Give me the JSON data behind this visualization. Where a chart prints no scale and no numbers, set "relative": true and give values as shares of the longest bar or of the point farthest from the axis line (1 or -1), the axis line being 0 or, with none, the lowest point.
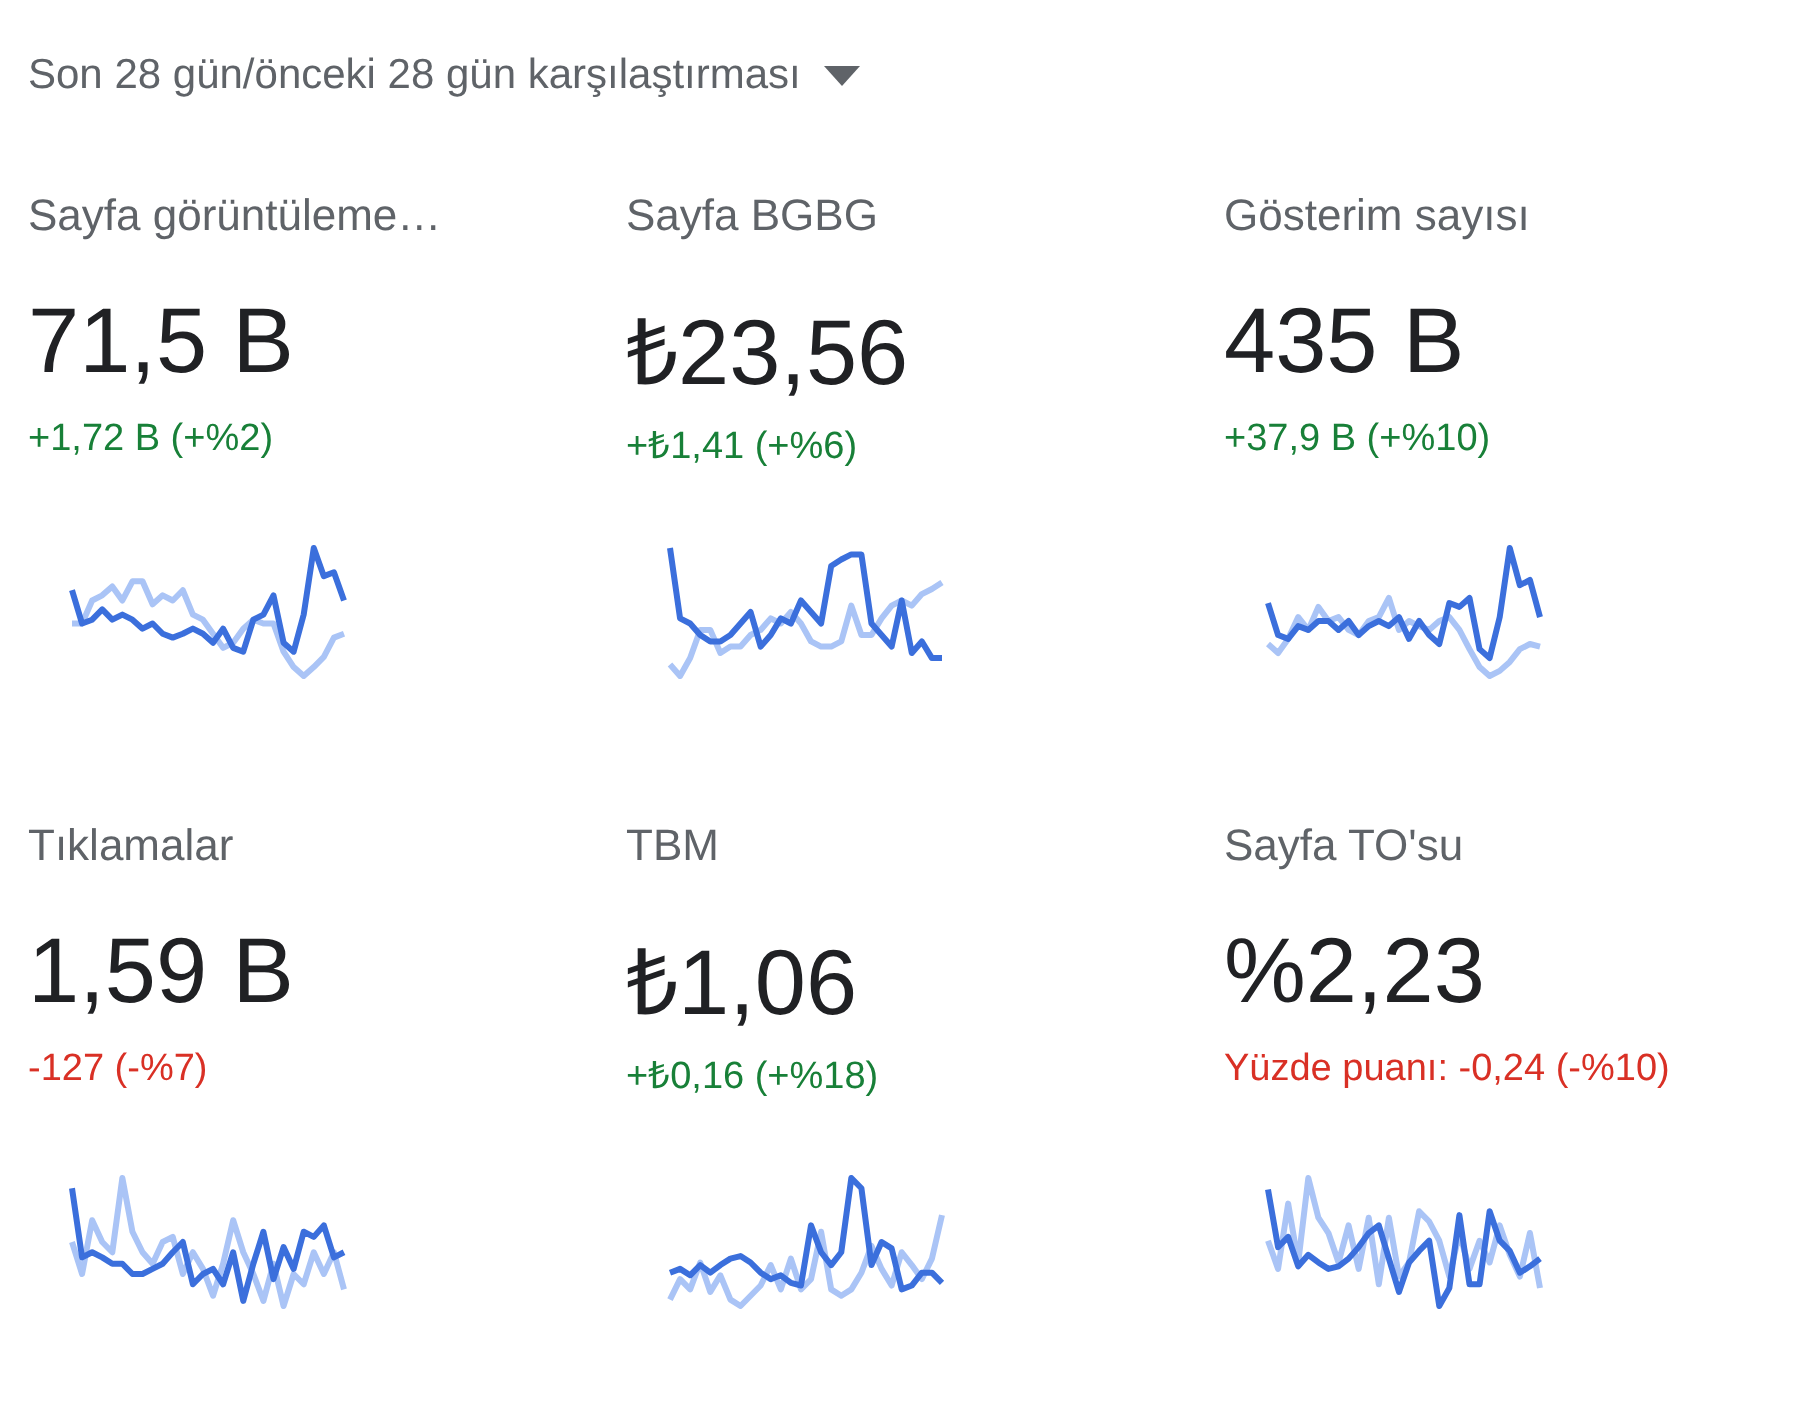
{
  "chart_data": [
    {
      "type": "other",
      "title": "Son 28 gün/önceki 28 gün karşılaştırması"
    },
    {
      "type": "line",
      "relative": true,
      "title": "Sayfa görüntüleme…",
      "subtitle": "71,5 B",
      "annotations": [
        "+1,72 B (+%2)"
      ],
      "categories": [
        null,
        null,
        null,
        null,
        null,
        null,
        null,
        null,
        null,
        null,
        null,
        null,
        null,
        null,
        null,
        null,
        null,
        null,
        null,
        null,
        null,
        null,
        null,
        null,
        null,
        null,
        null,
        null
      ],
      "series": [
        {
          "color": "#3b6fdc",
          "values": [
            0.67,
            0.41,
            0.44,
            0.52,
            0.44,
            0.48,
            0.44,
            0.37,
            0.41,
            0.33,
            0.3,
            0.33,
            0.37,
            0.33,
            0.26,
            0.37,
            0.22,
            0.19,
            0.44,
            0.48,
            0.63,
            0.26,
            0.19,
            0.48,
            1,
            0.78,
            0.81,
            0.59
          ]
        },
        {
          "color": "#aac4f6",
          "values": [
            0.41,
            0.41,
            0.59,
            0.63,
            0.7,
            0.59,
            0.74,
            0.74,
            0.56,
            0.63,
            0.59,
            0.67,
            0.48,
            0.44,
            0.33,
            0.22,
            0.26,
            0.37,
            0.44,
            0.41,
            0.41,
            0.19,
            0.07,
            0,
            0.07,
            0.15,
            0.3,
            0.33
          ]
        }
      ]
    },
    {
      "type": "line",
      "relative": true,
      "title": "Sayfa BGBG",
      "subtitle": "₺23,56",
      "annotations": [
        "+₺1,41 (+%6)"
      ],
      "categories": [
        null,
        null,
        null,
        null,
        null,
        null,
        null,
        null,
        null,
        null,
        null,
        null,
        null,
        null,
        null,
        null,
        null,
        null,
        null,
        null,
        null,
        null,
        null,
        null,
        null,
        null,
        null,
        null
      ],
      "series": [
        {
          "color": "#3b6fdc",
          "values": [
            1,
            0.45,
            0.41,
            0.32,
            0.27,
            0.27,
            0.32,
            0.41,
            0.5,
            0.23,
            0.32,
            0.45,
            0.41,
            0.59,
            0.5,
            0.41,
            0.86,
            0.91,
            0.95,
            0.95,
            0.41,
            0.32,
            0.23,
            0.59,
            0.18,
            0.27,
            0.14,
            0.14
          ]
        },
        {
          "color": "#aac4f6",
          "values": [
            0.09,
            0,
            0.14,
            0.36,
            0.36,
            0.18,
            0.23,
            0.23,
            0.32,
            0.36,
            0.45,
            0.41,
            0.5,
            0.41,
            0.27,
            0.23,
            0.23,
            0.27,
            0.55,
            0.32,
            0.32,
            0.45,
            0.55,
            0.59,
            0.55,
            0.64,
            0.68,
            0.73
          ]
        }
      ]
    },
    {
      "type": "line",
      "relative": true,
      "title": "Gösterim sayısı",
      "subtitle": "435 B",
      "annotations": [
        "+37,9 B (+%10)"
      ],
      "categories": [
        null,
        null,
        null,
        null,
        null,
        null,
        null,
        null,
        null,
        null,
        null,
        null,
        null,
        null,
        null,
        null,
        null,
        null,
        null,
        null,
        null,
        null,
        null,
        null,
        null,
        null,
        null,
        null
      ],
      "series": [
        {
          "color": "#3b6fdc",
          "values": [
            0.57,
            0.32,
            0.29,
            0.39,
            0.36,
            0.43,
            0.43,
            0.36,
            0.43,
            0.32,
            0.39,
            0.43,
            0.39,
            0.46,
            0.29,
            0.43,
            0.32,
            0.25,
            0.57,
            0.54,
            0.61,
            0.21,
            0.14,
            0.46,
            1,
            0.71,
            0.75,
            0.46
          ]
        },
        {
          "color": "#aac4f6",
          "values": [
            0.25,
            0.18,
            0.29,
            0.46,
            0.36,
            0.54,
            0.43,
            0.46,
            0.36,
            0.32,
            0.43,
            0.46,
            0.61,
            0.36,
            0.43,
            0.39,
            0.36,
            0.43,
            0.46,
            0.36,
            0.21,
            0.07,
            0,
            0.04,
            0.11,
            0.21,
            0.25,
            0.23
          ]
        }
      ]
    },
    {
      "type": "line",
      "relative": true,
      "title": "Tıklamalar",
      "subtitle": "1,59 B",
      "annotations": [
        "-127 (-%7)"
      ],
      "categories": [
        null,
        null,
        null,
        null,
        null,
        null,
        null,
        null,
        null,
        null,
        null,
        null,
        null,
        null,
        null,
        null,
        null,
        null,
        null,
        null,
        null,
        null,
        null,
        null,
        null,
        null,
        null,
        null
      ],
      "series": [
        {
          "color": "#3b6fdc",
          "values": [
            0.92,
            0.38,
            0.42,
            0.38,
            0.33,
            0.33,
            0.25,
            0.25,
            0.29,
            0.33,
            0.42,
            0.5,
            0.17,
            0.25,
            0.29,
            0.17,
            0.42,
            0.04,
            0.33,
            0.58,
            0.21,
            0.46,
            0.29,
            0.58,
            0.54,
            0.63,
            0.38,
            0.42
          ]
        },
        {
          "color": "#aac4f6",
          "values": [
            0.5,
            0.25,
            0.67,
            0.5,
            0.42,
            1,
            0.58,
            0.42,
            0.33,
            0.5,
            0.54,
            0.25,
            0.42,
            0.29,
            0.08,
            0.33,
            0.67,
            0.42,
            0.25,
            0.04,
            0.33,
            0,
            0.25,
            0.17,
            0.42,
            0.25,
            0.42,
            0.13
          ]
        }
      ]
    },
    {
      "type": "line",
      "relative": true,
      "title": "TBM",
      "subtitle": "₺1,06",
      "annotations": [
        "+₺0,16 (+%18)"
      ],
      "categories": [
        null,
        null,
        null,
        null,
        null,
        null,
        null,
        null,
        null,
        null,
        null,
        null,
        null,
        null,
        null,
        null,
        null,
        null,
        null,
        null,
        null,
        null,
        null,
        null,
        null,
        null,
        null,
        null
      ],
      "series": [
        {
          "color": "#3b6fdc",
          "values": [
            0.26,
            0.29,
            0.24,
            0.32,
            0.26,
            0.32,
            0.37,
            0.39,
            0.34,
            0.26,
            0.21,
            0.24,
            0.18,
            0.16,
            0.63,
            0.42,
            0.32,
            0.42,
            1,
            0.92,
            0.32,
            0.5,
            0.45,
            0.13,
            0.16,
            0.26,
            0.26,
            0.18
          ]
        },
        {
          "color": "#aac4f6",
          "values": [
            0.05,
            0.21,
            0.13,
            0.34,
            0.11,
            0.24,
            0.05,
            0,
            0.08,
            0.16,
            0.32,
            0.13,
            0.37,
            0.13,
            0.21,
            0.58,
            0.13,
            0.08,
            0.13,
            0.26,
            0.47,
            0.29,
            0.16,
            0.42,
            0.32,
            0.21,
            0.37,
            0.71
          ]
        }
      ]
    },
    {
      "type": "line",
      "relative": true,
      "title": "Sayfa TO'su",
      "subtitle": "%2,23",
      "annotations": [
        "Yüzde puanı: -0,24 (-%10)"
      ],
      "categories": [
        null,
        null,
        null,
        null,
        null,
        null,
        null,
        null,
        null,
        null,
        null,
        null,
        null,
        null,
        null,
        null,
        null,
        null,
        null,
        null,
        null,
        null,
        null,
        null,
        null,
        null,
        null,
        null
      ],
      "series": [
        {
          "color": "#3b6fdc",
          "values": [
            0.91,
            0.46,
            0.54,
            0.31,
            0.4,
            0.34,
            0.29,
            0.31,
            0.37,
            0.46,
            0.57,
            0.63,
            0.37,
            0.11,
            0.34,
            0.43,
            0.51,
            0,
            0.14,
            0.71,
            0.17,
            0.17,
            0.74,
            0.51,
            0.43,
            0.26,
            0.31,
            0.37
          ]
        },
        {
          "color": "#aac4f6",
          "values": [
            0.51,
            0.29,
            0.8,
            0.34,
            1,
            0.69,
            0.57,
            0.34,
            0.63,
            0.29,
            0.69,
            0.17,
            0.69,
            0.23,
            0.34,
            0.74,
            0.66,
            0.51,
            0.23,
            0.57,
            0.29,
            0.51,
            0.34,
            0.63,
            0.4,
            0.23,
            0.57,
            0.14
          ]
        }
      ]
    }
  ]
}
